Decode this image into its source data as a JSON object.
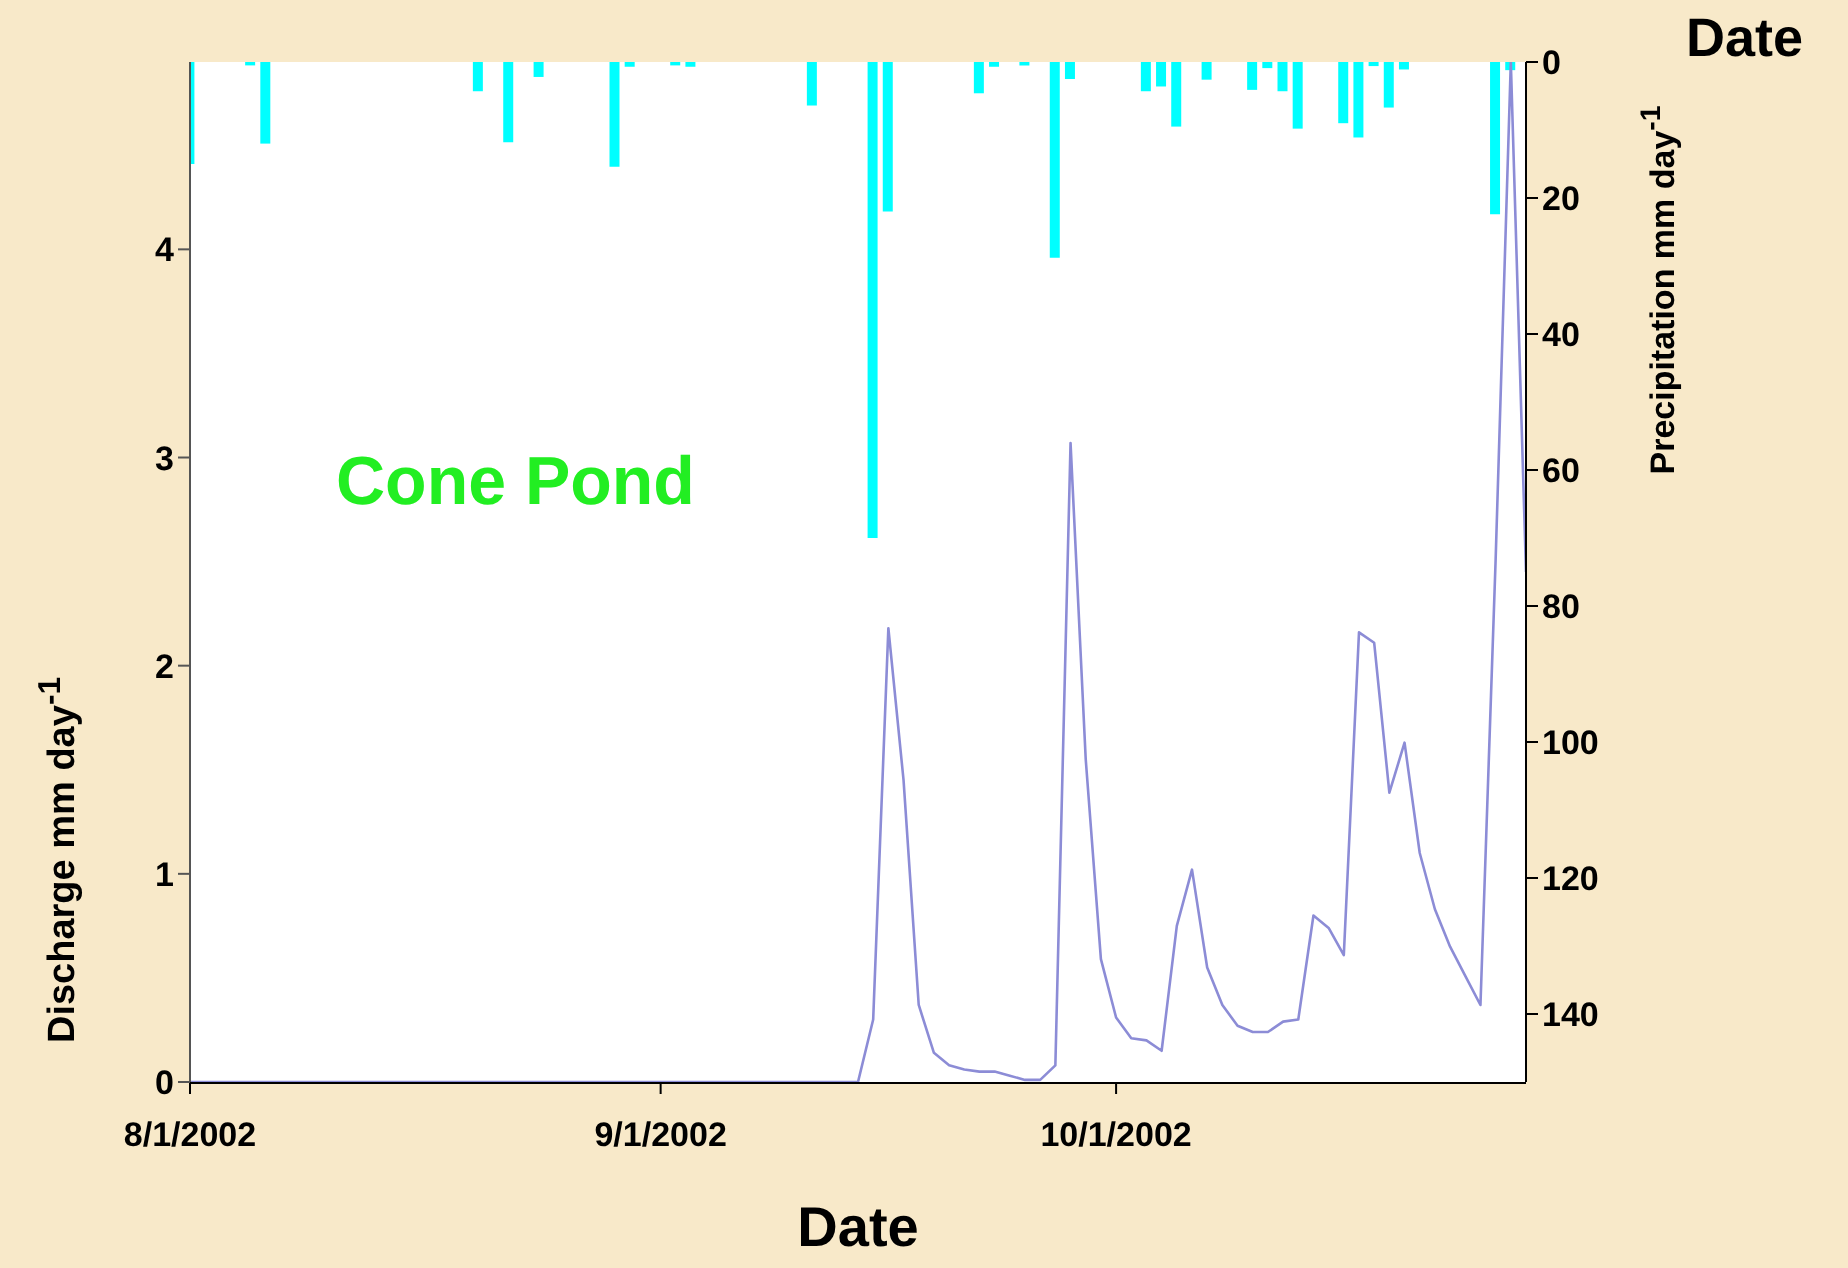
{
  "chart_data": {
    "type": "line",
    "title": "Cone Pond",
    "xlabel": "Date",
    "ylabel": "Discharge mm day$^{-1}$",
    "y2label": "Precipitation mm day$^{-1}$",
    "annotations": [
      "Date"
    ],
    "xlim": [
      "2002-08-01",
      "2002-10-28"
    ],
    "xticks": [
      {
        "value": "2002-08-01",
        "label": "8/1/2002"
      },
      {
        "value": "2002-09-01",
        "label": "9/1/2002"
      },
      {
        "value": "2002-10-01",
        "label": "10/1/2002"
      }
    ],
    "ylim": [
      0,
      4.9
    ],
    "yticks": [
      0,
      1,
      2,
      3,
      4
    ],
    "y2lim": [
      150,
      0
    ],
    "y2ticks": [
      0,
      20,
      40,
      60,
      80,
      100,
      120,
      140
    ],
    "series": [
      {
        "color": "#8c8cd6",
        "x": [
          "2002-08-01",
          "2002-08-02",
          "2002-08-03",
          "2002-08-04",
          "2002-08-05",
          "2002-08-06",
          "2002-08-07",
          "2002-08-08",
          "2002-08-09",
          "2002-08-10",
          "2002-08-11",
          "2002-08-12",
          "2002-08-13",
          "2002-08-14",
          "2002-08-15",
          "2002-08-16",
          "2002-08-17",
          "2002-08-18",
          "2002-08-19",
          "2002-08-20",
          "2002-08-21",
          "2002-08-22",
          "2002-08-23",
          "2002-08-24",
          "2002-08-25",
          "2002-08-26",
          "2002-08-27",
          "2002-08-28",
          "2002-08-29",
          "2002-08-30",
          "2002-08-31",
          "2002-09-01",
          "2002-09-02",
          "2002-09-03",
          "2002-09-04",
          "2002-09-05",
          "2002-09-06",
          "2002-09-07",
          "2002-09-08",
          "2002-09-09",
          "2002-09-10",
          "2002-09-11",
          "2002-09-12",
          "2002-09-13",
          "2002-09-14",
          "2002-09-15",
          "2002-09-16",
          "2002-09-17",
          "2002-09-18",
          "2002-09-19",
          "2002-09-20",
          "2002-09-21",
          "2002-09-22",
          "2002-09-23",
          "2002-09-24",
          "2002-09-25",
          "2002-09-26",
          "2002-09-27",
          "2002-09-28",
          "2002-09-29",
          "2002-09-30",
          "2002-10-01",
          "2002-10-02",
          "2002-10-03",
          "2002-10-04",
          "2002-10-05",
          "2002-10-06",
          "2002-10-07",
          "2002-10-08",
          "2002-10-09",
          "2002-10-10",
          "2002-10-11",
          "2002-10-12",
          "2002-10-13",
          "2002-10-14",
          "2002-10-15",
          "2002-10-16",
          "2002-10-17",
          "2002-10-18",
          "2002-10-19",
          "2002-10-20",
          "2002-10-21",
          "2002-10-22",
          "2002-10-23",
          "2002-10-24",
          "2002-10-25",
          "2002-10-26",
          "2002-10-27",
          "2002-10-28"
        ],
        "values": [
          0,
          0,
          0,
          0,
          0,
          0,
          0,
          0,
          0,
          0,
          0,
          0,
          0,
          0,
          0,
          0,
          0,
          0,
          0,
          0,
          0,
          0,
          0,
          0,
          0,
          0,
          0,
          0,
          0,
          0,
          0,
          0,
          0,
          0,
          0,
          0,
          0,
          0,
          0,
          0,
          0,
          0,
          0,
          0,
          0,
          0.3,
          2.18,
          1.45,
          0.37,
          0.14,
          0.08,
          0.06,
          0.05,
          0.05,
          0.03,
          0.01,
          0.01,
          0.08,
          3.07,
          1.55,
          0.59,
          0.31,
          0.21,
          0.2,
          0.15,
          0.75,
          1.02,
          0.55,
          0.37,
          0.27,
          0.24,
          0.24,
          0.29,
          0.3,
          0.8,
          0.74,
          0.61,
          2.16,
          2.11,
          1.39,
          1.63,
          1.1,
          0.83,
          0.65,
          0.51,
          0.37,
          2.51,
          4.9,
          2.45
        ]
      },
      {
        "type": "bar",
        "axis": "y2",
        "color": "#00ffff",
        "x": [
          "2002-08-01",
          "2002-08-05",
          "2002-08-06",
          "2002-08-20",
          "2002-08-22",
          "2002-08-24",
          "2002-08-29",
          "2002-08-30",
          "2002-09-02",
          "2002-09-03",
          "2002-09-11",
          "2002-09-15",
          "2002-09-16",
          "2002-09-22",
          "2002-09-23",
          "2002-09-25",
          "2002-09-27",
          "2002-09-28",
          "2002-10-03",
          "2002-10-04",
          "2002-10-05",
          "2002-10-07",
          "2002-10-10",
          "2002-10-11",
          "2002-10-12",
          "2002-10-13",
          "2002-10-16",
          "2002-10-17",
          "2002-10-18",
          "2002-10-19",
          "2002-10-20",
          "2002-10-26",
          "2002-10-27"
        ],
        "values": [
          15,
          0.5,
          12,
          4.3,
          11.8,
          2.2,
          15.4,
          0.7,
          0.5,
          0.7,
          6.4,
          70,
          22,
          4.6,
          0.7,
          0.5,
          28.8,
          2.5,
          4.3,
          3.6,
          9.5,
          2.6,
          4.1,
          0.9,
          4.3,
          9.8,
          9,
          11.1,
          0.6,
          6.7,
          1.1,
          22.4,
          1.2
        ]
      }
    ]
  }
}
